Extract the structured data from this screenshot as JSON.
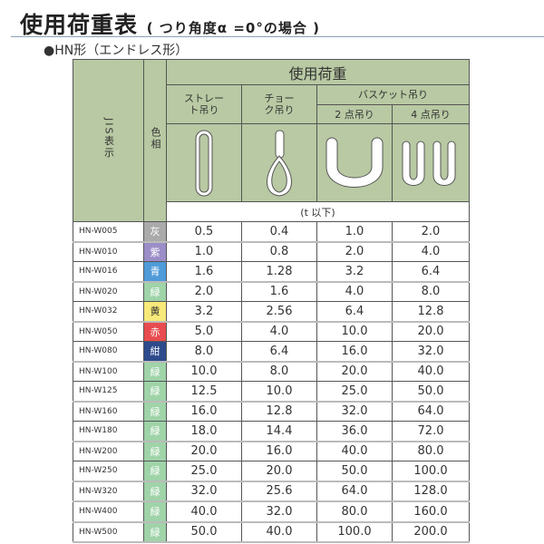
{
  "title": "使用荷重表",
  "title_note": "( つり角度α =0°の場合 )",
  "subtitle": "●HN形（エンドレス形）",
  "header": {
    "jis": "JIS表示",
    "color": "色相",
    "load": "使用荷重",
    "straight": "ストレート吊り",
    "choke": "チョーク吊り",
    "basket": "バスケット吊り",
    "two_point": "2 点吊り",
    "four_point": "4 点吊り",
    "unit": "(t 以下)"
  },
  "icons": [
    "straight-sling-icon",
    "choke-sling-icon",
    "basket-2point-icon",
    "basket-4point-icon"
  ],
  "rows": [
    {
      "code": "HN-W005",
      "color": "灰",
      "hex": "#aaaaaa",
      "v": [
        "0.5",
        "0.4",
        "1.0",
        "2.0"
      ]
    },
    {
      "code": "HN-W010",
      "color": "紫",
      "hex": "#9b8ec8",
      "v": [
        "1.0",
        "0.8",
        "2.0",
        "4.0"
      ]
    },
    {
      "code": "HN-W016",
      "color": "青",
      "hex": "#4f9bd9",
      "v": [
        "1.6",
        "1.28",
        "3.2",
        "6.4"
      ]
    },
    {
      "code": "HN-W020",
      "color": "緑",
      "hex": "#9fd3a8",
      "v": [
        "2.0",
        "1.6",
        "4.0",
        "8.0"
      ]
    },
    {
      "code": "HN-W032",
      "color": "黄",
      "hex": "#f7ea7a",
      "v": [
        "3.2",
        "2.56",
        "6.4",
        "12.8"
      ]
    },
    {
      "code": "HN-W050",
      "color": "赤",
      "hex": "#e84c4f",
      "v": [
        "5.0",
        "4.0",
        "10.0",
        "20.0"
      ]
    },
    {
      "code": "HN-W080",
      "color": "紺",
      "hex": "#2d4b8c",
      "v": [
        "8.0",
        "6.4",
        "16.0",
        "32.0"
      ]
    },
    {
      "code": "HN-W100",
      "color": "緑",
      "hex": "#9fd3a8",
      "v": [
        "10.0",
        "8.0",
        "20.0",
        "40.0"
      ]
    },
    {
      "code": "HN-W125",
      "color": "緑",
      "hex": "#9fd3a8",
      "v": [
        "12.5",
        "10.0",
        "25.0",
        "50.0"
      ]
    },
    {
      "code": "HN-W160",
      "color": "緑",
      "hex": "#9fd3a8",
      "v": [
        "16.0",
        "12.8",
        "32.0",
        "64.0"
      ]
    },
    {
      "code": "HN-W180",
      "color": "緑",
      "hex": "#9fd3a8",
      "v": [
        "18.0",
        "14.4",
        "36.0",
        "72.0"
      ]
    },
    {
      "code": "HN-W200",
      "color": "緑",
      "hex": "#9fd3a8",
      "v": [
        "20.0",
        "16.0",
        "40.0",
        "80.0"
      ]
    },
    {
      "code": "HN-W250",
      "color": "緑",
      "hex": "#9fd3a8",
      "v": [
        "25.0",
        "20.0",
        "50.0",
        "100.0"
      ]
    },
    {
      "code": "HN-W320",
      "color": "緑",
      "hex": "#9fd3a8",
      "v": [
        "32.0",
        "25.6",
        "64.0",
        "128.0"
      ]
    },
    {
      "code": "HN-W400",
      "color": "緑",
      "hex": "#9fd3a8",
      "v": [
        "40.0",
        "32.0",
        "80.0",
        "160.0"
      ]
    },
    {
      "code": "HN-W500",
      "color": "緑",
      "hex": "#9fd3a8",
      "v": [
        "50.0",
        "40.0",
        "100.0",
        "200.0"
      ]
    }
  ]
}
